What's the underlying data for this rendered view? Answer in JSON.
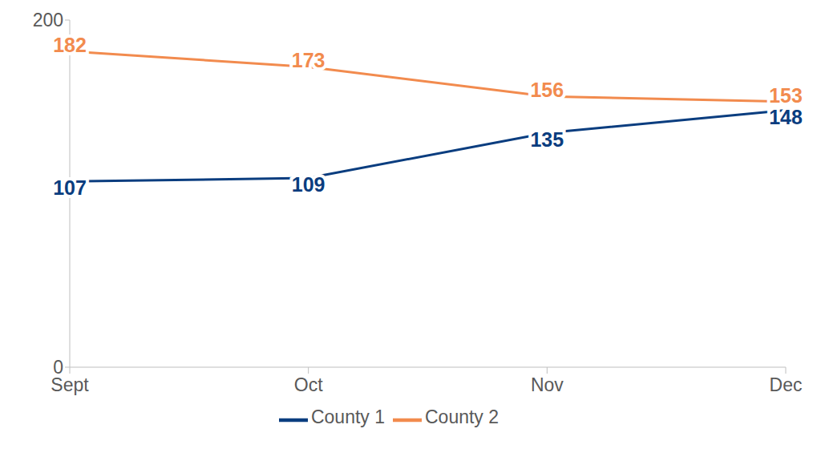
{
  "chart_data": {
    "type": "line",
    "categories": [
      "Sept",
      "Oct",
      "Nov",
      "Dec"
    ],
    "series": [
      {
        "name": "County 1",
        "color": "#0a3d7f",
        "values": [
          107,
          109,
          135,
          148
        ]
      },
      {
        "name": "County 2",
        "color": "#f28b4e",
        "values": [
          182,
          173,
          156,
          153
        ]
      }
    ],
    "ylim": [
      0,
      200
    ],
    "yticks": [
      0,
      200
    ],
    "grid": false,
    "legend": "bottom",
    "data_labels": true,
    "marker": "none"
  }
}
